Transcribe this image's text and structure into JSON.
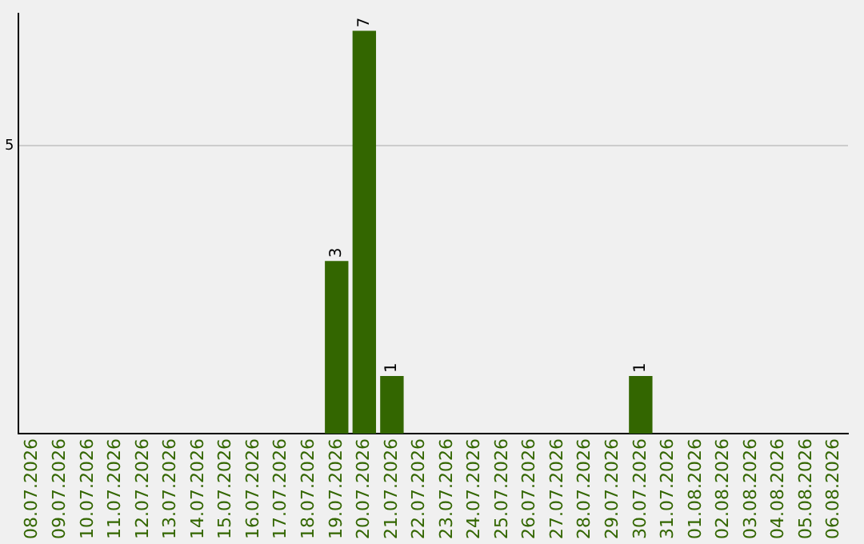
{
  "chart_data": {
    "type": "bar",
    "categories": [
      "08.07.2026",
      "09.07.2026",
      "10.07.2026",
      "11.07.2026",
      "12.07.2026",
      "13.07.2026",
      "14.07.2026",
      "15.07.2026",
      "16.07.2026",
      "17.07.2026",
      "18.07.2026",
      "19.07.2026",
      "20.07.2026",
      "21.07.2026",
      "22.07.2026",
      "23.07.2026",
      "24.07.2026",
      "25.07.2026",
      "26.07.2026",
      "27.07.2026",
      "28.07.2026",
      "29.07.2026",
      "30.07.2026",
      "31.07.2026",
      "01.08.2026",
      "02.08.2026",
      "03.08.2026",
      "04.08.2026",
      "05.08.2026",
      "06.08.2026"
    ],
    "values": [
      0,
      0,
      0,
      0,
      0,
      0,
      0,
      0,
      0,
      0,
      0,
      3,
      7,
      1,
      0,
      0,
      0,
      0,
      0,
      0,
      0,
      0,
      1,
      0,
      0,
      0,
      0,
      0,
      0,
      0
    ],
    "color": "#336600",
    "value_labels": [
      null,
      null,
      null,
      null,
      null,
      null,
      null,
      null,
      null,
      null,
      null,
      "3",
      "7",
      "1",
      null,
      null,
      null,
      null,
      null,
      null,
      null,
      null,
      "1",
      null,
      null,
      null,
      null,
      null,
      null,
      null
    ],
    "ylim": [
      0,
      7.3
    ],
    "yticks": [
      5
    ],
    "grid": "y",
    "legend": false
  }
}
